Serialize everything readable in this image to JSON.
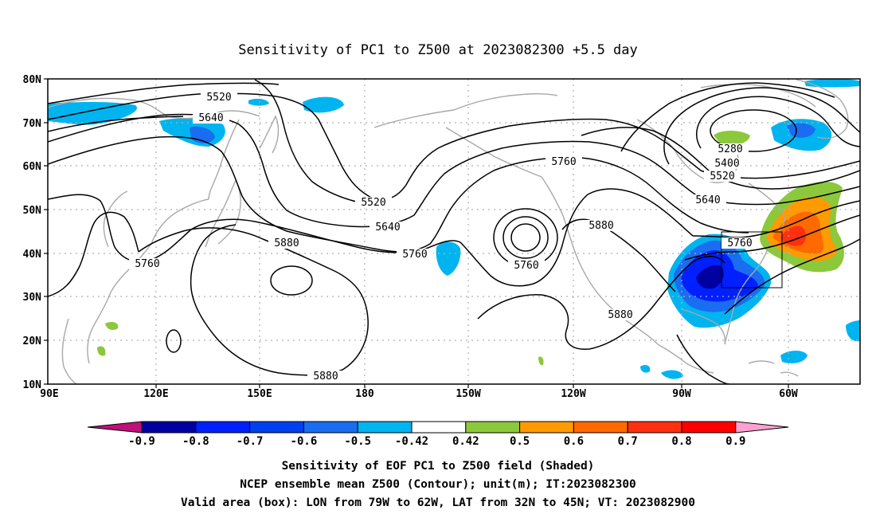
{
  "title": "Sensitivity of PC1 to Z500 at 2023082300 +5.5 day",
  "lat_ticks": [
    "80N",
    "70N",
    "60N",
    "50N",
    "40N",
    "30N",
    "20N",
    "10N"
  ],
  "lon_ticks": [
    "90E",
    "120E",
    "150E",
    "180",
    "150W",
    "120W",
    "90W",
    "60W"
  ],
  "contour_labels": [
    {
      "text": "5520",
      "id": "c5520-a"
    },
    {
      "text": "5640",
      "id": "c5640-a"
    },
    {
      "text": "5520",
      "id": "c5520-b"
    },
    {
      "text": "5640",
      "id": "c5640-b"
    },
    {
      "text": "5760",
      "id": "c5760-a"
    },
    {
      "text": "5880",
      "id": "c5880-a"
    },
    {
      "text": "5760",
      "id": "c5760-b"
    },
    {
      "text": "5760",
      "id": "c5760-c"
    },
    {
      "text": "5760",
      "id": "c5760-d"
    },
    {
      "text": "5880",
      "id": "c5880-b"
    },
    {
      "text": "5880",
      "id": "c5880-c"
    },
    {
      "text": "5880",
      "id": "c5880-d"
    },
    {
      "text": "5280",
      "id": "c5280"
    },
    {
      "text": "5400",
      "id": "c5400"
    },
    {
      "text": "5520",
      "id": "c5520-c"
    },
    {
      "text": "5640",
      "id": "c5640-c"
    },
    {
      "text": "5760",
      "id": "c5760-e"
    }
  ],
  "colorbar": {
    "labels": [
      "-0.9",
      "-0.8",
      "-0.7",
      "-0.6",
      "-0.5",
      "-0.42",
      "0.42",
      "0.5",
      "0.6",
      "0.7",
      "0.8",
      "0.9"
    ],
    "colors": [
      "#0000a0",
      "#0020ff",
      "#0040f0",
      "#1a6cf0",
      "#00b4f0",
      "#ffffff",
      "#8cc83c",
      "#ff9a00",
      "#ff6a00",
      "#ff3010",
      "#ff0000"
    ],
    "low_end_color": "#c0107a",
    "high_end_color": "#ffa0d0"
  },
  "caption": {
    "line1": "Sensitivity of EOF PC1 to Z500 field (Shaded)",
    "line2": "NCEP ensemble mean Z500 (Contour); unit(m); IT:2023082300",
    "line3": "Valid area (box): LON from 79W to 62W, LAT from 32N to 45N; VT: 2023082900"
  },
  "valid_area": {
    "lon_min": -79,
    "lon_max": -62,
    "lat_min": 32,
    "lat_max": 45
  },
  "domain": {
    "lon_min": 90,
    "lon_max": 325,
    "lat_min": 10,
    "lat_max": 80
  }
}
